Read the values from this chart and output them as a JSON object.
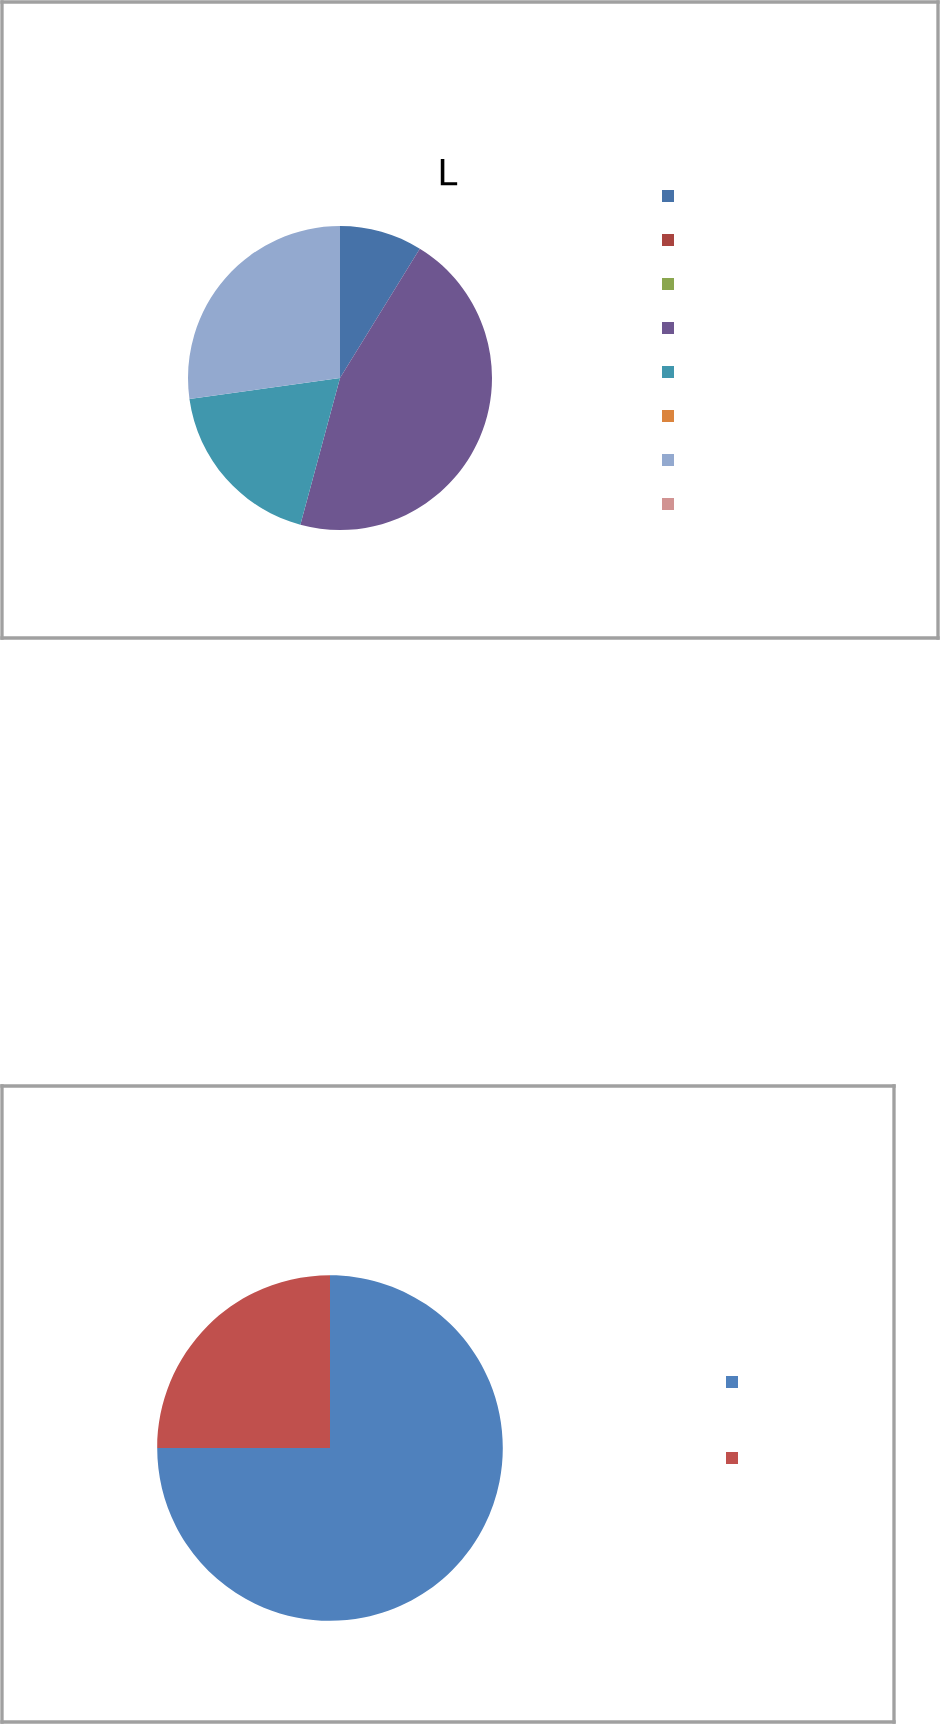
{
  "chart_data": [
    {
      "type": "pie",
      "categories": [
        null,
        null,
        null,
        null,
        null,
        null,
        null,
        null
      ],
      "values": [
        8.8,
        0,
        0,
        45.4,
        18.6,
        0,
        27.2,
        0
      ],
      "colors": [
        "#4672a8",
        "#a9443f",
        "#8aa64e",
        "#6e5690",
        "#4097ad",
        "#db843d",
        "#93a9cf",
        "#d19392"
      ],
      "annotations": [
        "L"
      ]
    },
    {
      "type": "pie",
      "categories": [
        null,
        null
      ],
      "values": [
        75,
        25
      ],
      "colors": [
        "#4f81bd",
        "#c0504d"
      ]
    }
  ]
}
